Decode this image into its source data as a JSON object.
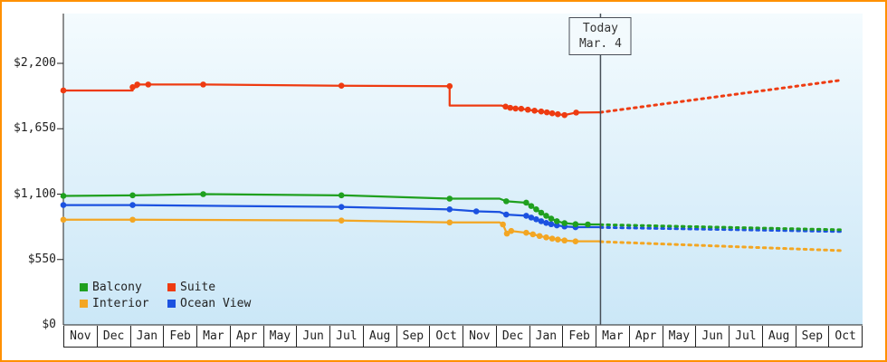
{
  "frame": {
    "border_color": "#ff9000",
    "background": "#ffffff"
  },
  "chart_data": {
    "type": "line",
    "title": "",
    "xlabel": "",
    "ylabel": "",
    "ylim": [
      0,
      2618
    ],
    "grid": false,
    "legend_position": "bottom-left-inside",
    "plot_background": {
      "top": "#f4fbfe",
      "bottom": "#cbe7f7"
    },
    "axis_color": "#222222",
    "today": {
      "line1": "Today",
      "line2": "Mar. 4",
      "month_x": 16.13,
      "line_color": "#474f57"
    },
    "y_axis": {
      "ticks": [
        {
          "value": 0,
          "label": "$0"
        },
        {
          "value": 550,
          "label": "$550"
        },
        {
          "value": 1100,
          "label": "$1,100"
        },
        {
          "value": 1650,
          "label": "$1,650"
        },
        {
          "value": 2200,
          "label": "$2,200"
        }
      ]
    },
    "x_axis": {
      "months": [
        "Nov",
        "Dec",
        "Jan",
        "Feb",
        "Mar",
        "Apr",
        "May",
        "Jun",
        "Jul",
        "Aug",
        "Sep",
        "Oct",
        "Nov",
        "Dec",
        "Jan",
        "Feb",
        "Mar",
        "Apr",
        "May",
        "Jun",
        "Jul",
        "Aug",
        "Sep",
        "Oct"
      ]
    },
    "series": [
      {
        "name": "Interior",
        "color": "#f3a623",
        "solid": [
          [
            0,
            885,
            1
          ],
          [
            2.08,
            885,
            1
          ],
          [
            8.35,
            878,
            1
          ],
          [
            11.6,
            862,
            1
          ],
          [
            13.1,
            862,
            0
          ],
          [
            13.2,
            845,
            1
          ],
          [
            13.32,
            768,
            1
          ],
          [
            13.45,
            790,
            1
          ],
          [
            13.9,
            775,
            1
          ],
          [
            14.1,
            762,
            1
          ],
          [
            14.3,
            748,
            1
          ],
          [
            14.5,
            736,
            1
          ],
          [
            14.68,
            726,
            1
          ],
          [
            14.85,
            718,
            1
          ],
          [
            15.05,
            710,
            1
          ],
          [
            15.38,
            703,
            1
          ],
          [
            16.13,
            703,
            0
          ]
        ],
        "dotted": [
          [
            16.13,
            700
          ],
          [
            23.35,
            625
          ]
        ]
      },
      {
        "name": "Ocean View",
        "color": "#1c52e0",
        "solid": [
          [
            0,
            1008,
            1
          ],
          [
            2.08,
            1008,
            1
          ],
          [
            8.35,
            992,
            1
          ],
          [
            11.6,
            972,
            1
          ],
          [
            12.4,
            955,
            1
          ],
          [
            13.1,
            950,
            0
          ],
          [
            13.3,
            928,
            1
          ],
          [
            13.9,
            918,
            1
          ],
          [
            14.05,
            903,
            1
          ],
          [
            14.2,
            888,
            1
          ],
          [
            14.35,
            872,
            1
          ],
          [
            14.5,
            858,
            1
          ],
          [
            14.65,
            847,
            1
          ],
          [
            14.82,
            837,
            1
          ],
          [
            15.05,
            828,
            1
          ],
          [
            15.38,
            822,
            1
          ],
          [
            16.13,
            822,
            0
          ]
        ],
        "dotted": [
          [
            16.13,
            820
          ],
          [
            23.35,
            786
          ]
        ]
      },
      {
        "name": "Balcony",
        "color": "#1fa01f",
        "solid": [
          [
            0,
            1085,
            1
          ],
          [
            2.08,
            1090,
            1
          ],
          [
            4.2,
            1100,
            1
          ],
          [
            8.35,
            1090,
            1
          ],
          [
            11.6,
            1062,
            1
          ],
          [
            13.1,
            1062,
            0
          ],
          [
            13.3,
            1040,
            1
          ],
          [
            13.9,
            1028,
            1
          ],
          [
            14.05,
            1000,
            1
          ],
          [
            14.2,
            972,
            1
          ],
          [
            14.35,
            944,
            1
          ],
          [
            14.5,
            918,
            1
          ],
          [
            14.65,
            894,
            1
          ],
          [
            14.82,
            872,
            1
          ],
          [
            15.05,
            856,
            1
          ],
          [
            15.38,
            847,
            1
          ],
          [
            15.75,
            845,
            1
          ],
          [
            16.13,
            845,
            0
          ]
        ],
        "dotted": [
          [
            16.13,
            843
          ],
          [
            23.35,
            800
          ]
        ]
      },
      {
        "name": "Suite",
        "color": "#ee3b11",
        "solid": [
          [
            0,
            1972,
            1
          ],
          [
            2.08,
            1972,
            0
          ],
          [
            2.08,
            2000,
            1
          ],
          [
            2.22,
            2000,
            0
          ],
          [
            2.22,
            2022,
            1
          ],
          [
            2.55,
            2022,
            1
          ],
          [
            4.2,
            2022,
            1
          ],
          [
            8.35,
            2012,
            1
          ],
          [
            11.6,
            2008,
            1
          ],
          [
            11.6,
            1845,
            0
          ],
          [
            13.15,
            1845,
            0
          ],
          [
            13.28,
            1836,
            1
          ],
          [
            13.42,
            1826,
            1
          ],
          [
            13.58,
            1820,
            1
          ],
          [
            13.75,
            1818,
            1
          ],
          [
            13.95,
            1810,
            1
          ],
          [
            14.15,
            1802,
            1
          ],
          [
            14.35,
            1795,
            1
          ],
          [
            14.52,
            1788,
            1
          ],
          [
            14.68,
            1780,
            1
          ],
          [
            14.85,
            1772,
            1
          ],
          [
            15.05,
            1765,
            1
          ],
          [
            15.4,
            1786,
            1
          ],
          [
            16.13,
            1788,
            0
          ]
        ],
        "dotted": [
          [
            16.13,
            1788
          ],
          [
            23.35,
            2058
          ]
        ]
      }
    ],
    "legend": [
      {
        "label": "Balcony",
        "color": "#1fa01f"
      },
      {
        "label": "Suite",
        "color": "#ee3b11"
      },
      {
        "label": "Interior",
        "color": "#f3a623"
      },
      {
        "label": "Ocean View",
        "color": "#1c52e0"
      }
    ]
  }
}
